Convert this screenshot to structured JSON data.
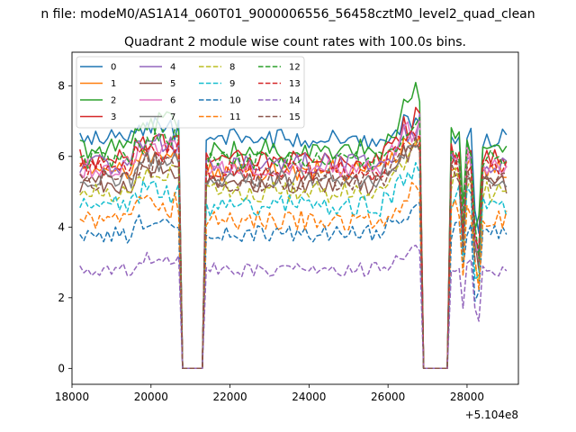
{
  "chart_data": {
    "type": "line",
    "suptitle": "n file: modeM0/AS1A14_060T01_9000006556_56458cztM0_level2_quad_clean",
    "title": "Quadrant 2 module wise count rates with 100.0s bins.",
    "xlabel": "",
    "ylabel": "",
    "x_offset_label": "+5.104e8",
    "xlim": [
      18000,
      29300
    ],
    "ylim": [
      -0.45,
      8.95
    ],
    "x_ticks": [
      18000,
      20000,
      22000,
      24000,
      26000,
      28000
    ],
    "x_tick_labels": [
      "18000",
      "20000",
      "22000",
      "24000",
      "26000",
      "28000"
    ],
    "y_ticks": [
      0,
      2,
      4,
      6,
      8
    ],
    "y_tick_labels": [
      "0",
      "2",
      "4",
      "6",
      "8"
    ],
    "x_start": 18200,
    "x_step": 100,
    "x_end": 29000,
    "gaps": [
      [
        20800,
        21300
      ],
      [
        26900,
        27500
      ]
    ],
    "legend_position": "upper left",
    "series": [
      {
        "name": "0",
        "color": "#1f77b4",
        "dash": "solid",
        "mean": 6.5,
        "noise": 0.28,
        "peak": 7.2
      },
      {
        "name": "1",
        "color": "#ff7f0e",
        "dash": "solid",
        "mean": 5.6,
        "noise": 0.3,
        "peak": 6.6
      },
      {
        "name": "2",
        "color": "#2ca02c",
        "dash": "solid",
        "mean": 6.2,
        "noise": 0.3,
        "peak": 7.9
      },
      {
        "name": "3",
        "color": "#d62728",
        "dash": "solid",
        "mean": 5.9,
        "noise": 0.3,
        "peak": 7.3
      },
      {
        "name": "4",
        "color": "#9467bd",
        "dash": "solid",
        "mean": 5.8,
        "noise": 0.3,
        "peak": 7.0
      },
      {
        "name": "5",
        "color": "#8c564b",
        "dash": "solid",
        "mean": 5.2,
        "noise": 0.3,
        "peak": 6.4
      },
      {
        "name": "6",
        "color": "#e377c2",
        "dash": "solid",
        "mean": 5.7,
        "noise": 0.3,
        "peak": 6.9
      },
      {
        "name": "7",
        "color": "#7f7f7f",
        "dash": "solid",
        "mean": 5.4,
        "noise": 0.3,
        "peak": 6.6
      },
      {
        "name": "8",
        "color": "#bcbd22",
        "dash": "dashed",
        "mean": 5.0,
        "noise": 0.3,
        "peak": 6.3
      },
      {
        "name": "9",
        "color": "#17becf",
        "dash": "dashed",
        "mean": 4.6,
        "noise": 0.3,
        "peak": 5.8
      },
      {
        "name": "10",
        "color": "#1f77b4",
        "dash": "dashed",
        "mean": 3.8,
        "noise": 0.25,
        "peak": 4.7
      },
      {
        "name": "11",
        "color": "#ff7f0e",
        "dash": "dashed",
        "mean": 4.2,
        "noise": 0.28,
        "peak": 5.3
      },
      {
        "name": "12",
        "color": "#2ca02c",
        "dash": "dashed",
        "mean": 5.9,
        "noise": 0.3,
        "peak": 7.2
      },
      {
        "name": "13",
        "color": "#d62728",
        "dash": "dashed",
        "mean": 5.6,
        "noise": 0.3,
        "peak": 7.0
      },
      {
        "name": "14",
        "color": "#9467bd",
        "dash": "dashed",
        "mean": 2.8,
        "noise": 0.2,
        "peak": 3.4
      },
      {
        "name": "15",
        "color": "#8c564b",
        "dash": "dashed",
        "mean": 5.3,
        "noise": 0.3,
        "peak": 6.6
      }
    ]
  }
}
